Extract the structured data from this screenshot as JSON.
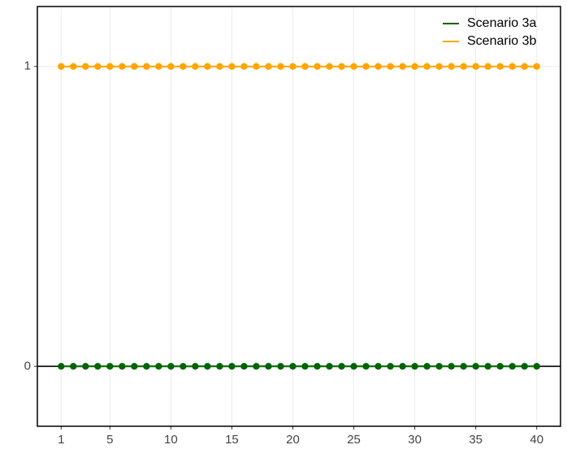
{
  "chart_data": {
    "type": "line",
    "x": [
      1,
      2,
      3,
      4,
      5,
      6,
      7,
      8,
      9,
      10,
      11,
      12,
      13,
      14,
      15,
      16,
      17,
      18,
      19,
      20,
      21,
      22,
      23,
      24,
      25,
      26,
      27,
      28,
      29,
      30,
      31,
      32,
      33,
      34,
      35,
      36,
      37,
      38,
      39,
      40
    ],
    "series": [
      {
        "name": "Scenario 3a",
        "color": "#006400",
        "values": [
          0,
          0,
          0,
          0,
          0,
          0,
          0,
          0,
          0,
          0,
          0,
          0,
          0,
          0,
          0,
          0,
          0,
          0,
          0,
          0,
          0,
          0,
          0,
          0,
          0,
          0,
          0,
          0,
          0,
          0,
          0,
          0,
          0,
          0,
          0,
          0,
          0,
          0,
          0,
          0
        ]
      },
      {
        "name": "Scenario 3b",
        "color": "#ffa500",
        "values": [
          1,
          1,
          1,
          1,
          1,
          1,
          1,
          1,
          1,
          1,
          1,
          1,
          1,
          1,
          1,
          1,
          1,
          1,
          1,
          1,
          1,
          1,
          1,
          1,
          1,
          1,
          1,
          1,
          1,
          1,
          1,
          1,
          1,
          1,
          1,
          1,
          1,
          1,
          1,
          1
        ]
      }
    ],
    "xlim": [
      -0.95,
      41.95
    ],
    "xticks": [
      1,
      5,
      10,
      15,
      20,
      25,
      30,
      35,
      40
    ],
    "ylim": [
      -0.2,
      1.2
    ],
    "yticks": [
      0,
      1
    ],
    "hline": 0,
    "grid": true,
    "legend": "top-right"
  }
}
